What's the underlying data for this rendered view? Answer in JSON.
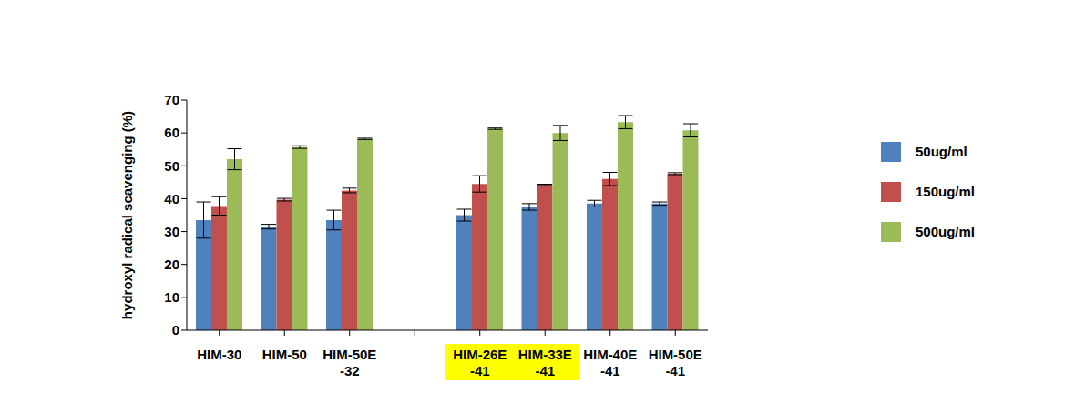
{
  "chart_data": {
    "type": "bar",
    "y_label": "hydroxyl radical scavenging (%)",
    "categories": [
      "HIM-30",
      "HIM-50",
      "HIM-50E\n-32",
      null,
      "HIM-26E\n-41",
      "HIM-33E\n-41",
      "HIM-40E\n-41",
      "HIM-50E\n-41"
    ],
    "series": [
      {
        "name": "50ug/ml",
        "color": "#4f81bd",
        "values": [
          33.5,
          31.5,
          33.5,
          null,
          35,
          37.5,
          38.5,
          38.5
        ],
        "errors": [
          5.5,
          0.7,
          3,
          null,
          1.8,
          1,
          1,
          0.5
        ]
      },
      {
        "name": "150ug/ml",
        "color": "#c0504d",
        "values": [
          37.8,
          39.7,
          42.5,
          null,
          44.5,
          44.2,
          46,
          47.6
        ],
        "errors": [
          2.8,
          0.4,
          0.7,
          null,
          2.5,
          0.2,
          2,
          0.3
        ]
      },
      {
        "name": "500ug/ml",
        "color": "#9bbb59",
        "values": [
          52,
          55.7,
          58.2,
          null,
          61.3,
          60,
          63.3,
          60.8
        ],
        "errors": [
          3.2,
          0.4,
          0.2,
          null,
          0.2,
          2.3,
          2,
          2
        ]
      }
    ],
    "ylim": [
      0,
      70
    ],
    "yticks": [
      0,
      10,
      20,
      30,
      40,
      50,
      60,
      70
    ],
    "grid": false,
    "legend": "right"
  }
}
